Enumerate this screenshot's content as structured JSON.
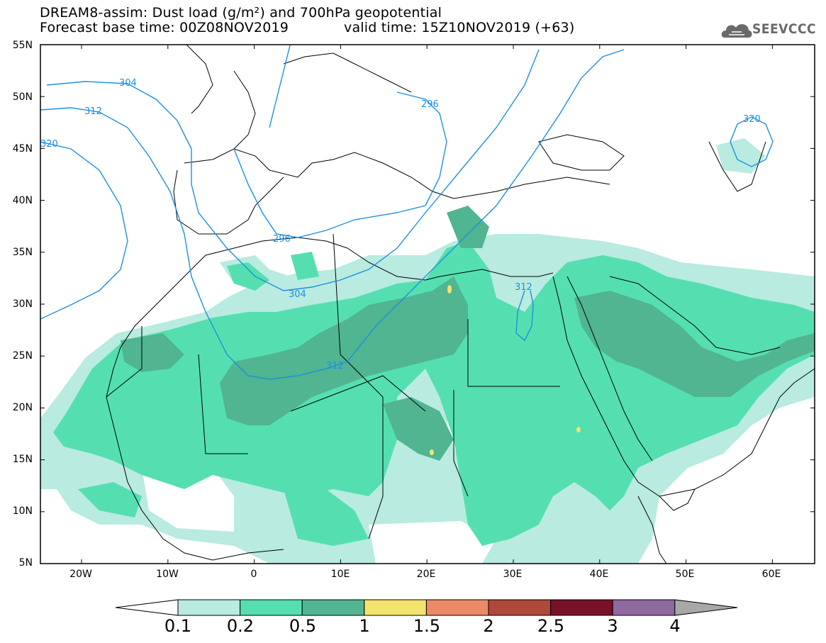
{
  "title": {
    "line1": "DREAM8-assim: Dust load (g/m²) and 700hPa geopotential",
    "line2a": "Forecast base time: 00Z08NOV2019",
    "line2b": "valid time: 15Z10NOV2019 (+63)"
  },
  "logo": {
    "text": "SEEVCCC",
    "icon": "cloud-icon"
  },
  "axes": {
    "lat_labels": [
      "55N",
      "50N",
      "45N",
      "40N",
      "35N",
      "30N",
      "25N",
      "20N",
      "15N",
      "10N",
      "5N"
    ],
    "lon_labels": [
      "20W",
      "10W",
      "0",
      "10E",
      "20E",
      "30E",
      "40E",
      "50E",
      "60E"
    ]
  },
  "contours": {
    "labels": [
      "304",
      "312",
      "320",
      "296",
      "296",
      "304",
      "312",
      "312",
      "320"
    ],
    "color": "#1e90e0"
  },
  "colorbar": {
    "levels": [
      "0.1",
      "0.2",
      "0.5",
      "1",
      "1.5",
      "2",
      "2.5",
      "3",
      "4"
    ],
    "colors": [
      "#b9ebe0",
      "#55dfb0",
      "#50b590",
      "#f2e46c",
      "#eb8a64",
      "#b0483c",
      "#78102a",
      "#8e6aa0"
    ],
    "under": "#ffffff",
    "over": "#a8a8a8"
  },
  "colors": {
    "light": "#b9ebe0",
    "mid": "#55dfb0",
    "dark": "#50b590",
    "yellow": "#f2e46c"
  }
}
